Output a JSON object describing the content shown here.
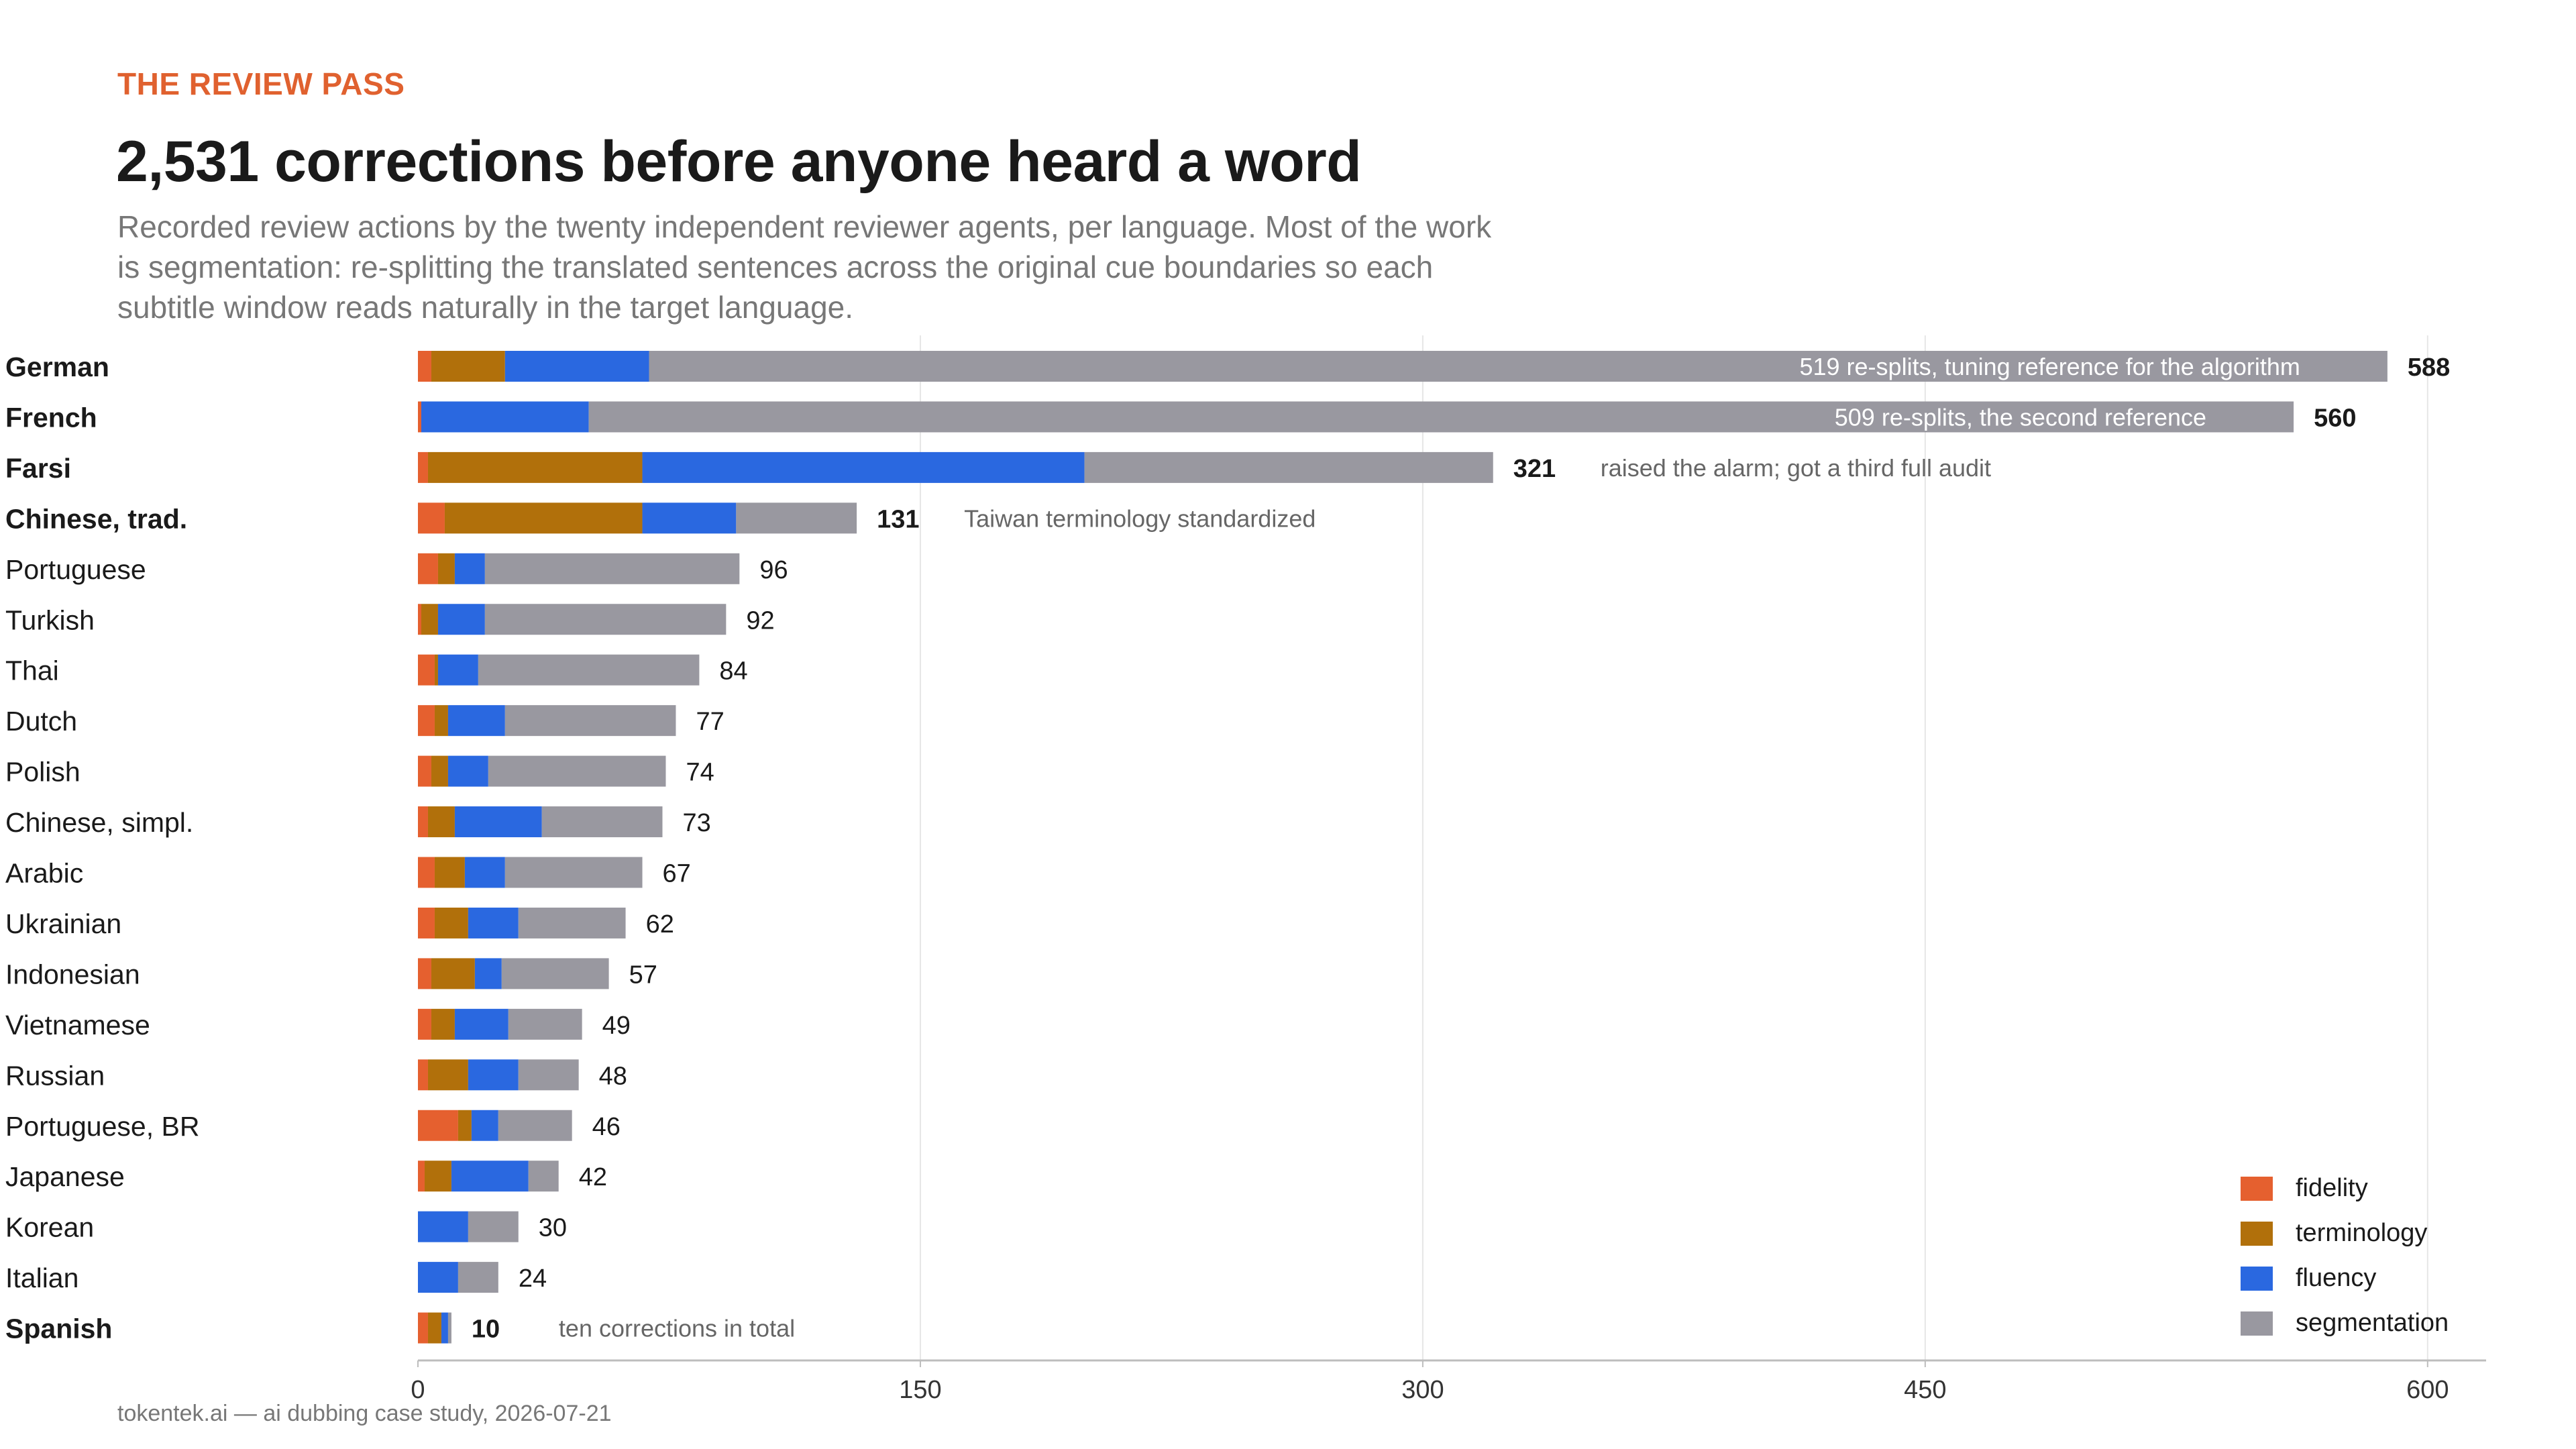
{
  "header": {
    "kicker": "THE REVIEW PASS",
    "title": "2,531 corrections before anyone heard a word",
    "subtitle": "Recorded review actions by the twenty independent reviewer agents, per language. Most of the work is segmentation: re-splitting the translated sentences across the original cue boundaries so each subtitle window reads naturally in the target language."
  },
  "footer": "tokentek.ai — ai dubbing case study, 2026-07-21",
  "colors": {
    "fidelity": "#e5602f",
    "terminology": "#b1700b",
    "fluency": "#2a68e0",
    "segmentation": "#9998a0",
    "grid": "#e6e6e6",
    "axis": "#bdbdbd"
  },
  "chart_data": {
    "type": "bar",
    "orientation": "horizontal",
    "stacked": true,
    "xlim": [
      0,
      620
    ],
    "xticks": [
      0,
      150,
      300,
      450,
      600
    ],
    "grid": true,
    "legend_position": "bottom-right",
    "series_names": [
      "fidelity",
      "terminology",
      "fluency",
      "segmentation"
    ],
    "categories": [
      {
        "language": "German",
        "bold": true,
        "fidelity": 4,
        "terminology": 22,
        "fluency": 43,
        "segmentation": 519,
        "total": "588",
        "note": "519 re-splits, tuning reference for the algorithm",
        "note_inside": true
      },
      {
        "language": "French",
        "bold": true,
        "fidelity": 1,
        "terminology": 0,
        "fluency": 50,
        "segmentation": 509,
        "total": "560",
        "note": "509 re-splits, the second reference",
        "note_inside": true
      },
      {
        "language": "Farsi",
        "bold": true,
        "fidelity": 3,
        "terminology": 64,
        "fluency": 132,
        "segmentation": 122,
        "total": "321",
        "note": "raised the alarm; got a third full audit",
        "note_inside": false
      },
      {
        "language": "Chinese, trad.",
        "bold": true,
        "fidelity": 8,
        "terminology": 59,
        "fluency": 28,
        "segmentation": 36,
        "total": "131",
        "note": "Taiwan terminology standardized",
        "note_inside": false
      },
      {
        "language": "Portuguese",
        "bold": false,
        "fidelity": 6,
        "terminology": 5,
        "fluency": 9,
        "segmentation": 76,
        "total": "96",
        "note": "",
        "note_inside": false
      },
      {
        "language": "Turkish",
        "bold": false,
        "fidelity": 1,
        "terminology": 5,
        "fluency": 14,
        "segmentation": 72,
        "total": "92",
        "note": "",
        "note_inside": false
      },
      {
        "language": "Thai",
        "bold": false,
        "fidelity": 5,
        "terminology": 1,
        "fluency": 12,
        "segmentation": 66,
        "total": "84",
        "note": "",
        "note_inside": false
      },
      {
        "language": "Dutch",
        "bold": false,
        "fidelity": 5,
        "terminology": 4,
        "fluency": 17,
        "segmentation": 51,
        "total": "77",
        "note": "",
        "note_inside": false
      },
      {
        "language": "Polish",
        "bold": false,
        "fidelity": 4,
        "terminology": 5,
        "fluency": 12,
        "segmentation": 53,
        "total": "74",
        "note": "",
        "note_inside": false
      },
      {
        "language": "Chinese, simpl.",
        "bold": false,
        "fidelity": 3,
        "terminology": 8,
        "fluency": 26,
        "segmentation": 36,
        "total": "73",
        "note": "",
        "note_inside": false
      },
      {
        "language": "Arabic",
        "bold": false,
        "fidelity": 5,
        "terminology": 9,
        "fluency": 12,
        "segmentation": 41,
        "total": "67",
        "note": "",
        "note_inside": false
      },
      {
        "language": "Ukrainian",
        "bold": false,
        "fidelity": 5,
        "terminology": 10,
        "fluency": 15,
        "segmentation": 32,
        "total": "62",
        "note": "",
        "note_inside": false
      },
      {
        "language": "Indonesian",
        "bold": false,
        "fidelity": 4,
        "terminology": 13,
        "fluency": 8,
        "segmentation": 32,
        "total": "57",
        "note": "",
        "note_inside": false
      },
      {
        "language": "Vietnamese",
        "bold": false,
        "fidelity": 4,
        "terminology": 7,
        "fluency": 16,
        "segmentation": 22,
        "total": "49",
        "note": "",
        "note_inside": false
      },
      {
        "language": "Russian",
        "bold": false,
        "fidelity": 3,
        "terminology": 12,
        "fluency": 15,
        "segmentation": 18,
        "total": "48",
        "note": "",
        "note_inside": false
      },
      {
        "language": "Portuguese, BR",
        "bold": false,
        "fidelity": 12,
        "terminology": 4,
        "fluency": 8,
        "segmentation": 22,
        "total": "46",
        "note": "",
        "note_inside": false
      },
      {
        "language": "Japanese",
        "bold": false,
        "fidelity": 2,
        "terminology": 8,
        "fluency": 23,
        "segmentation": 9,
        "total": "42",
        "note": "",
        "note_inside": false
      },
      {
        "language": "Korean",
        "bold": false,
        "fidelity": 0,
        "terminology": 0,
        "fluency": 15,
        "segmentation": 15,
        "total": "30",
        "note": "",
        "note_inside": false
      },
      {
        "language": "Italian",
        "bold": false,
        "fidelity": 0,
        "terminology": 0,
        "fluency": 12,
        "segmentation": 12,
        "total": "24",
        "note": "",
        "note_inside": false
      },
      {
        "language": "Spanish",
        "bold": true,
        "fidelity": 3,
        "terminology": 4,
        "fluency": 2,
        "segmentation": 1,
        "total": "10",
        "note": "ten corrections in total",
        "note_inside": false
      }
    ]
  }
}
